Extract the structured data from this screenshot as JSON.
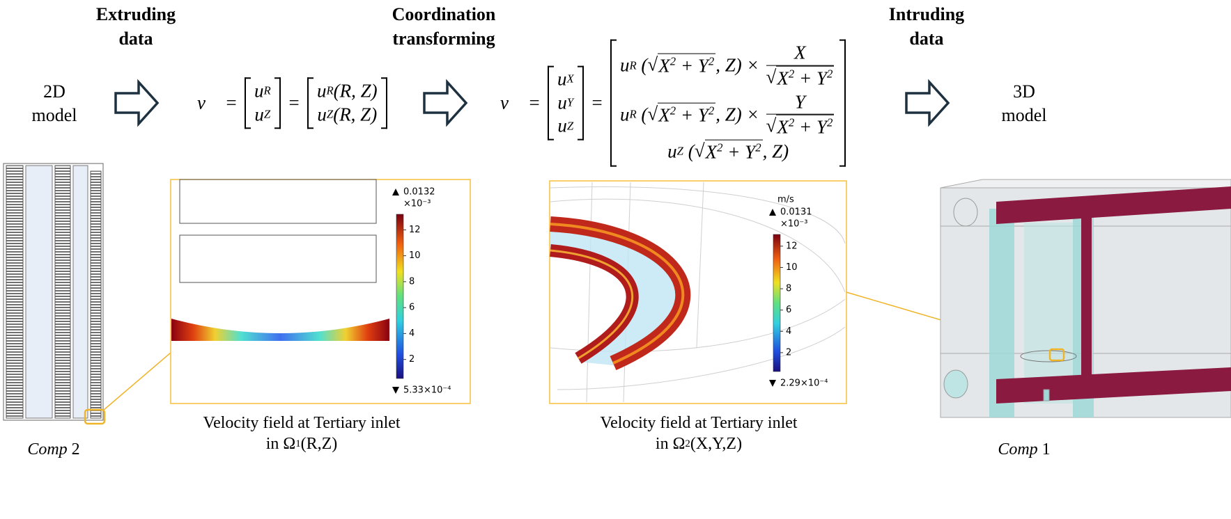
{
  "step_titles": [
    [
      "Extruding",
      "data"
    ],
    [
      "Coordination",
      "transforming"
    ],
    [
      "Intruding",
      "data"
    ]
  ],
  "models": [
    [
      "2D",
      "model"
    ],
    [
      "3D",
      "model"
    ]
  ],
  "equation_1": {
    "lhs": "v⃗ =",
    "vector": [
      [
        {
          "t": "u",
          "sub": "R"
        }
      ],
      [
        {
          "t": "u",
          "sub": "Z"
        }
      ]
    ],
    "equals": "=",
    "matrix": [
      [
        {
          "t": "u",
          "sub": "R"
        },
        {
          "t": "(R, Z)"
        }
      ],
      [
        {
          "t": "u",
          "sub": "Z"
        },
        {
          "t": "(R, Z)"
        }
      ]
    ]
  },
  "equation_2": {
    "lhs": "v⃗ =",
    "vector": [
      [
        {
          "t": "u",
          "sub": "X"
        }
      ],
      [
        {
          "t": "u",
          "sub": "Y"
        }
      ],
      [
        {
          "t": "u",
          "sub": "Z"
        }
      ]
    ],
    "equals": "=",
    "matrix": [
      [
        {
          "t": "u",
          "sub": "R"
        },
        {
          "t": " ("
        },
        {
          "root": "√",
          "arg": [
            {
              "t": "X",
              "sup": "2"
            },
            {
              "t": " + "
            },
            {
              "t": "Y",
              "sup": "2"
            }
          ]
        },
        {
          "t": ", Z) × "
        },
        {
          "num": [
            {
              "t": "X"
            }
          ],
          "den": [
            {
              "root": "√",
              "arg": [
                {
                  "t": "X",
                  "sup": "2"
                },
                {
                  "t": " + "
                },
                {
                  "t": "Y",
                  "sup": "2"
                }
              ]
            }
          ]
        }
      ],
      [
        {
          "t": "u",
          "sub": "R"
        },
        {
          "t": " ("
        },
        {
          "root": "√",
          "arg": [
            {
              "t": "X",
              "sup": "2"
            },
            {
              "t": " + "
            },
            {
              "t": "Y",
              "sup": "2"
            }
          ]
        },
        {
          "t": ", Z) × "
        },
        {
          "num": [
            {
              "t": "Y"
            }
          ],
          "den": [
            {
              "root": "√",
              "arg": [
                {
                  "t": "X",
                  "sup": "2"
                },
                {
                  "t": " + "
                },
                {
                  "t": "Y",
                  "sup": "2"
                }
              ]
            }
          ]
        }
      ],
      [
        {
          "t": "u",
          "sub": "Z"
        },
        {
          "t": " ("
        },
        {
          "root": "√",
          "arg": [
            {
              "t": "X",
              "sup": "2"
            },
            {
              "t": " + "
            },
            {
              "t": "Y",
              "sup": "2"
            }
          ]
        },
        {
          "t": ", Z)"
        }
      ]
    ]
  },
  "panels": [
    {
      "colorbar": {
        "max": 0.0132,
        "scale": {
          "value": 0.001,
          "label": "×10⁻³"
        },
        "ticks": [
          12,
          10,
          8,
          6,
          4,
          2
        ],
        "min": {
          "value": 0.000533,
          "label": "5.33×10⁻⁴"
        }
      },
      "caption": [
        [
          {
            "t": "Velocity field at Tertiary inlet"
          }
        ],
        [
          {
            "t": "in Ω",
            "sub": "1"
          },
          {
            "t": "(R,Z)"
          }
        ]
      ]
    },
    {
      "colorbar": {
        "unit": "m/s",
        "max": 0.0131,
        "scale": {
          "value": 0.001,
          "label": "×10⁻³"
        },
        "ticks": [
          12,
          10,
          8,
          6,
          4,
          2
        ],
        "min": {
          "value": 0.000229,
          "label": "2.29×10⁻⁴"
        }
      },
      "caption": [
        [
          {
            "t": "Velocity field at Tertiary inlet"
          }
        ],
        [
          {
            "t": "in Ω",
            "sub": "2"
          },
          {
            "t": "(X,Y,Z)"
          }
        ]
      ]
    }
  ],
  "components": [
    {
      "name": "Comp",
      "number": "2"
    },
    {
      "name": "Comp",
      "number": "1"
    }
  ]
}
